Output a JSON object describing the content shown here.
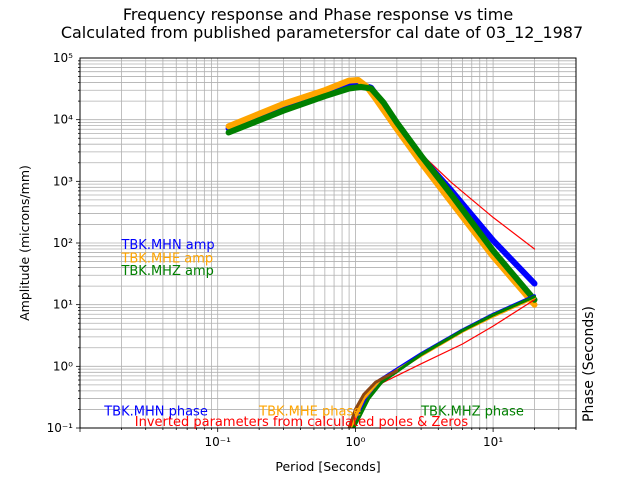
{
  "chart_data": {
    "type": "line",
    "title": "Frequency response and Phase response vs time",
    "subtitle": "Calculated from published parametersfor cal date of 03_12_1987",
    "xlabel": "Period [Seconds]",
    "ylabel": "Amplitude (microns/mm)",
    "y2label": "Phase (Seconds)",
    "xscale": "log",
    "yscale": "log",
    "xlim": [
      0.01,
      40
    ],
    "ylim": [
      0.1,
      100000
    ],
    "grid": true,
    "x_tick_labels": [
      "10⁻¹",
      "10⁰",
      "10¹"
    ],
    "y_tick_labels": [
      "10⁻¹",
      "10⁰",
      "10¹",
      "10²",
      "10³",
      "10⁴",
      "10⁵"
    ],
    "annotations": [
      {
        "text": "TBK.MHN amp",
        "color": "#0000ff"
      },
      {
        "text": "TBK.MHE amp",
        "color": "#ffa500"
      },
      {
        "text": "TBK.MHZ amp",
        "color": "#008000"
      },
      {
        "text": "TBK.MHN phase",
        "color": "#0000ff"
      },
      {
        "text": "TBK.MHE phase",
        "color": "#ffa500"
      },
      {
        "text": "TBK.MHZ phase",
        "color": "#008000"
      },
      {
        "text": "Inverted parameters from calculated poles & Zeros",
        "color": "#ff0000"
      }
    ],
    "series": [
      {
        "color": "#ff0000",
        "width": 1.2,
        "kind": "amp-inverted",
        "x": [
          0.12,
          0.3,
          0.6,
          0.9,
          1.1,
          1.3,
          1.6,
          2,
          3,
          5,
          10,
          20
        ],
        "y": [
          7000,
          15000,
          26000,
          36000,
          36000,
          32000,
          17000,
          8500,
          2800,
          950,
          260,
          80
        ]
      },
      {
        "color": "#0000ff",
        "width": 6,
        "kind": "amp",
        "x": [
          0.12,
          0.3,
          0.6,
          0.9,
          1.1,
          1.3,
          1.6,
          2,
          3,
          5,
          10,
          20
        ],
        "y": [
          7200,
          15000,
          26000,
          36000,
          37000,
          33000,
          17000,
          8500,
          2500,
          700,
          110,
          22
        ]
      },
      {
        "color": "#ffa500",
        "width": 6,
        "kind": "amp",
        "x": [
          0.12,
          0.3,
          0.6,
          0.9,
          1.05,
          1.2,
          1.4,
          2,
          3,
          5,
          10,
          20
        ],
        "y": [
          7800,
          18000,
          30000,
          43000,
          44000,
          35000,
          22000,
          7000,
          2000,
          450,
          60,
          10
        ]
      },
      {
        "color": "#008000",
        "width": 6,
        "kind": "amp",
        "x": [
          0.12,
          0.3,
          0.6,
          0.9,
          1.1,
          1.3,
          1.6,
          2,
          3,
          5,
          10,
          20
        ],
        "y": [
          6200,
          14000,
          24000,
          32000,
          34000,
          32000,
          19000,
          9000,
          2600,
          600,
          75,
          12
        ]
      },
      {
        "color": "#ff0000",
        "width": 1.2,
        "kind": "phase-inverted",
        "x": [
          0.9,
          1.0,
          1.2,
          1.6,
          3,
          6,
          10,
          20
        ],
        "y": [
          0.1,
          0.18,
          0.33,
          0.55,
          1.1,
          2.3,
          4.5,
          12
        ]
      },
      {
        "color": "#0000ff",
        "width": 3,
        "kind": "phase",
        "x": [
          0.95,
          1.05,
          1.2,
          1.5,
          3,
          6,
          10,
          20
        ],
        "y": [
          0.1,
          0.15,
          0.32,
          0.6,
          1.6,
          3.9,
          7,
          14
        ]
      },
      {
        "color": "#ffa500",
        "width": 3,
        "kind": "phase",
        "x": [
          0.93,
          1.0,
          1.15,
          1.45,
          3,
          6,
          10,
          20
        ],
        "y": [
          0.1,
          0.15,
          0.3,
          0.55,
          1.5,
          3.7,
          6.5,
          13
        ]
      },
      {
        "color": "#008000",
        "width": 3,
        "kind": "phase",
        "x": [
          0.97,
          1.07,
          1.25,
          1.55,
          3,
          6,
          10,
          20
        ],
        "y": [
          0.1,
          0.15,
          0.3,
          0.55,
          1.55,
          3.8,
          6.8,
          13.5
        ]
      },
      {
        "color": "#8b4513",
        "width": 3,
        "kind": "phase",
        "x": [
          0.9,
          1.0,
          1.15,
          1.4,
          2
        ],
        "y": [
          0.1,
          0.2,
          0.35,
          0.55,
          0.85
        ]
      }
    ]
  }
}
